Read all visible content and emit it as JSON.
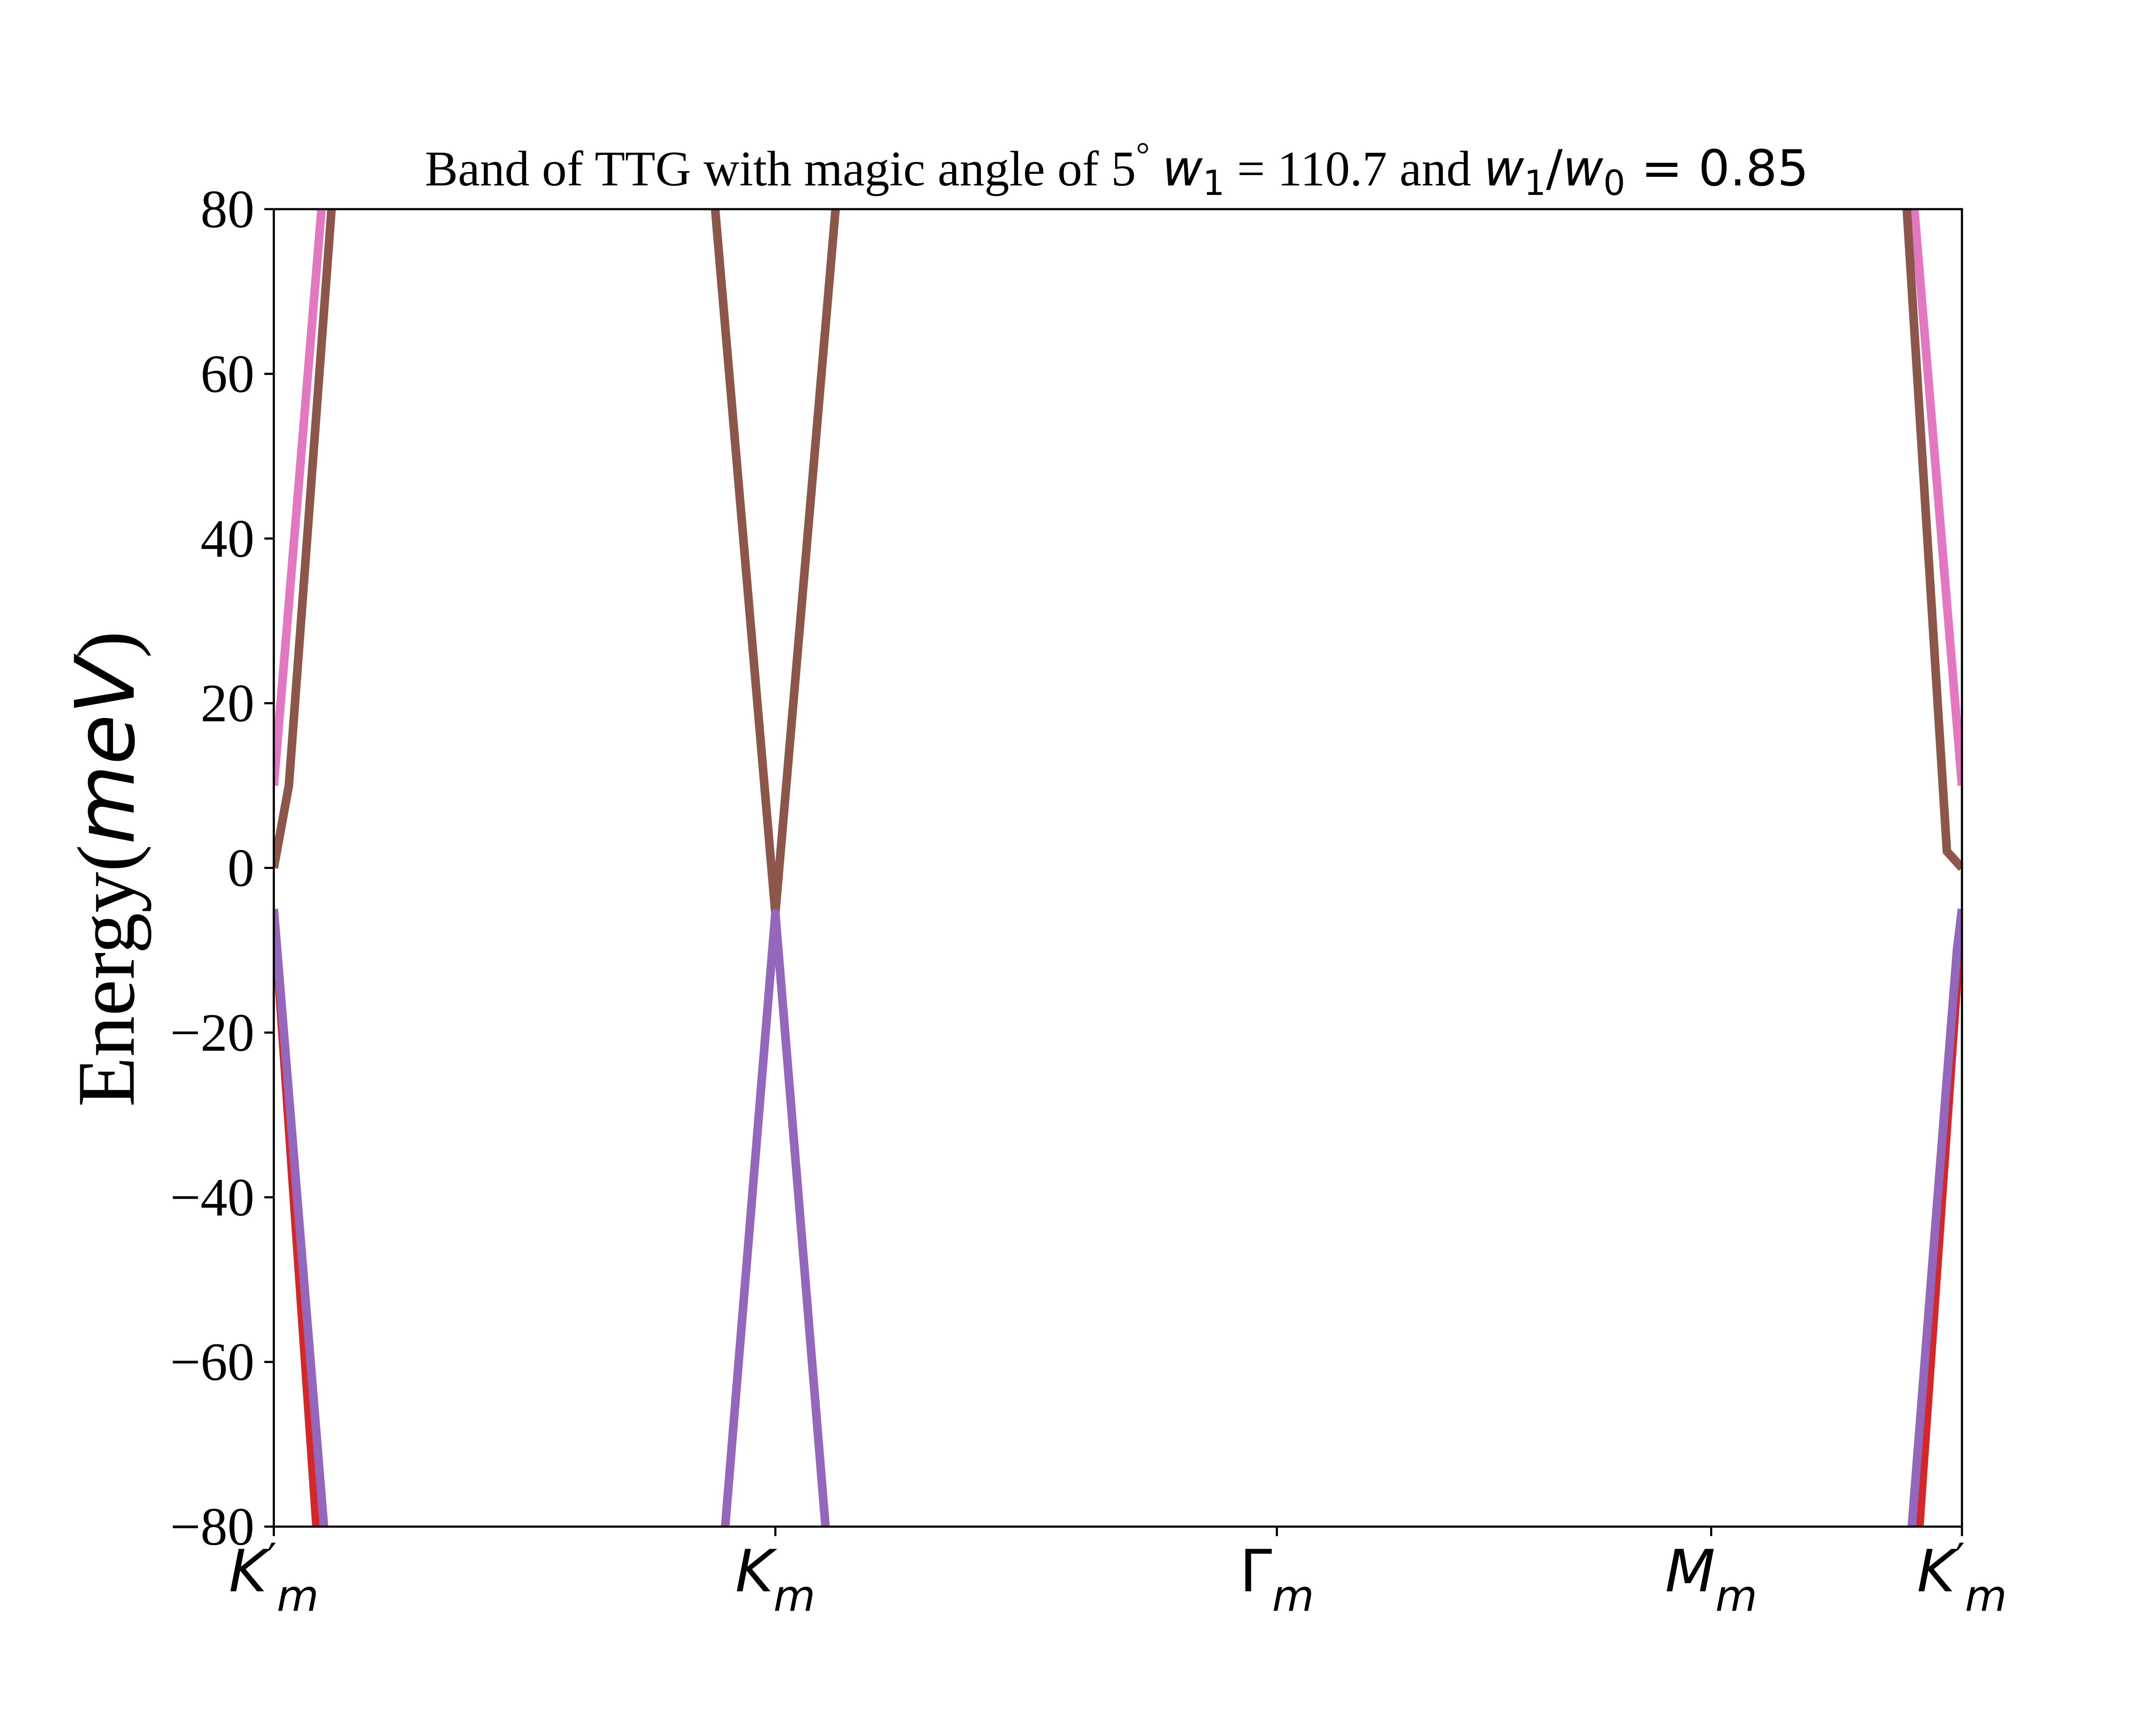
{
  "chart_data": {
    "type": "line",
    "title": {
      "text": "Band of TTG with magic angle of 5",
      "degree": "°",
      "w1_label": "w",
      "w1_sub": "1",
      "w1_value": " = 110.7 and ",
      "ratio_w1": "w",
      "ratio_w1_sub": "1",
      "ratio_slash": "/",
      "ratio_w0": "w",
      "ratio_w0_sub": "0",
      "ratio_value": " = 0.85"
    },
    "ylabel": {
      "prefix": "Energy(",
      "unit": "meV",
      "suffix": ")"
    },
    "ylim": [
      -80,
      80
    ],
    "yticks": [
      {
        "value": -80,
        "label": "−80"
      },
      {
        "value": -60,
        "label": "−60"
      },
      {
        "value": -40,
        "label": "−40"
      },
      {
        "value": -20,
        "label": "−20"
      },
      {
        "value": 0,
        "label": "0"
      },
      {
        "value": 20,
        "label": "20"
      },
      {
        "value": 40,
        "label": "40"
      },
      {
        "value": 60,
        "label": "60"
      },
      {
        "value": 80,
        "label": "80"
      }
    ],
    "xlim": [
      0,
      3.366
    ],
    "xticks": [
      {
        "value": 0,
        "base": "K",
        "prime": "′",
        "sub": "m"
      },
      {
        "value": 1.0,
        "base": "K",
        "prime": "",
        "sub": "m"
      },
      {
        "value": 2.0,
        "base": "Γ",
        "prime": "",
        "sub": "m"
      },
      {
        "value": 2.866,
        "base": "M",
        "prime": "",
        "sub": "m"
      },
      {
        "value": 3.366,
        "base": "K",
        "prime": "′",
        "sub": "m"
      }
    ],
    "grid": false,
    "series": [
      {
        "color": "#e377c2",
        "points": [
          [
            0.0,
            10
          ],
          [
            0.095,
            80
          ]
        ]
      },
      {
        "color": "#8c564b",
        "points": [
          [
            0.0,
            0
          ],
          [
            0.03,
            10
          ],
          [
            0.115,
            80
          ]
        ]
      },
      {
        "color": "#8c564b",
        "points": [
          [
            0.88,
            80
          ],
          [
            1.0,
            -5.5
          ],
          [
            1.12,
            80
          ]
        ]
      },
      {
        "color": "#e377c2",
        "points": [
          [
            3.366,
            10
          ],
          [
            3.271,
            80
          ]
        ]
      },
      {
        "color": "#8c564b",
        "points": [
          [
            3.366,
            0
          ],
          [
            3.336,
            2
          ],
          [
            3.256,
            80
          ]
        ]
      },
      {
        "color": "#d62728",
        "points": [
          [
            0.0,
            -5
          ],
          [
            0.085,
            -80
          ]
        ]
      },
      {
        "color": "#9467bd",
        "points": [
          [
            0.0,
            -5
          ],
          [
            0.1,
            -80
          ]
        ]
      },
      {
        "color": "#9467bd",
        "points": [
          [
            0.9,
            -80
          ],
          [
            1.0,
            -5.5
          ],
          [
            1.1,
            -80
          ]
        ]
      },
      {
        "color": "#d62728",
        "points": [
          [
            3.366,
            -5
          ],
          [
            3.281,
            -80
          ]
        ]
      },
      {
        "color": "#9467bd",
        "points": [
          [
            3.366,
            -5
          ],
          [
            3.356,
            -10
          ],
          [
            3.266,
            -80
          ]
        ]
      }
    ]
  }
}
